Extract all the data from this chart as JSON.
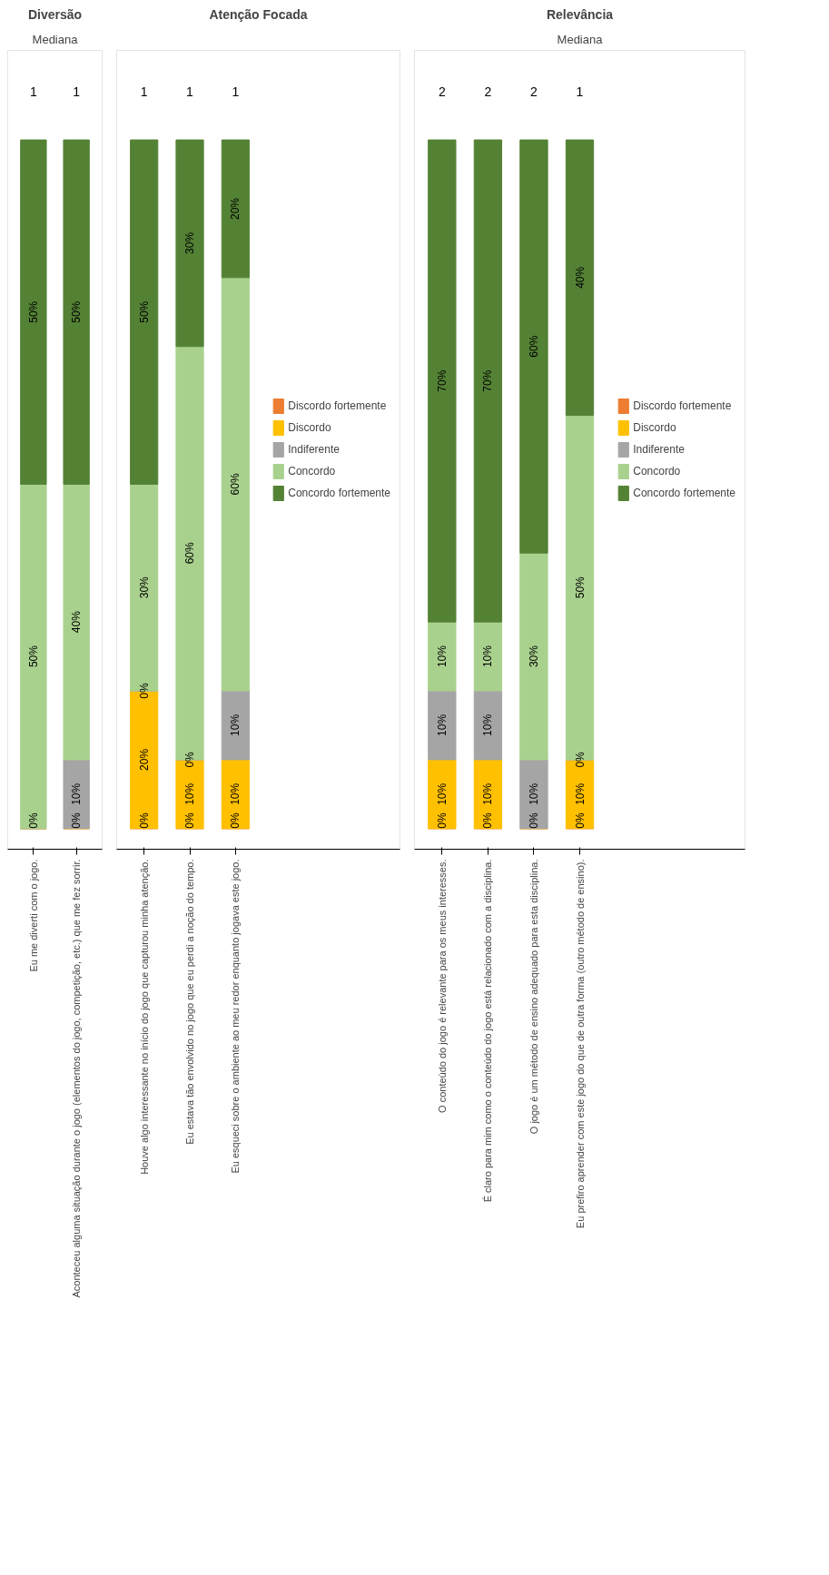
{
  "chart_data": [
    {
      "type": "bar",
      "title": "Diversão",
      "stacked": true,
      "grid": false,
      "categories": [
        "Eu me diverti com o jogo.",
        "Aconteceu alguma situação durante o jogo (elementos do jogo, competição, etc.) que me fez sorrir."
      ],
      "series": [
        {
          "color": "#ed7d31",
          "values": [
            0,
            0
          ],
          "value_labels": [
            "0%",
            "0%"
          ]
        },
        {
          "color": "#ffc000",
          "values": [
            null,
            null
          ],
          "value_labels": [
            null,
            null
          ]
        },
        {
          "color": "#a5a5a5",
          "values": [
            null,
            10
          ],
          "value_labels": [
            null,
            "10%"
          ]
        },
        {
          "color": "#a9d18e",
          "values": [
            50,
            40
          ],
          "value_labels": [
            "50%",
            "40%"
          ]
        },
        {
          "color": "#548235",
          "values": [
            50,
            50
          ],
          "value_labels": [
            "50%",
            "50%"
          ]
        }
      ],
      "annotations": [
        "Mediana",
        "1",
        "1"
      ]
    },
    {
      "type": "bar",
      "title": "Atenção Focada",
      "stacked": true,
      "grid": false,
      "legend": "right",
      "categories": [
        "Houve algo interessante no início do jogo que capturou minha atenção.",
        "Eu estava tão envolvido no jogo que eu perdi a noção do tempo.",
        "Eu esqueci sobre o ambiente ao meu redor enquanto jogava este jogo."
      ],
      "series": [
        {
          "name": "Discordo fortemente",
          "color": "#ed7d31",
          "values": [
            0,
            0,
            0
          ],
          "value_labels": [
            "0%",
            "0%",
            "0%"
          ]
        },
        {
          "name": "Discordo",
          "color": "#ffc000",
          "values": [
            20,
            10,
            10
          ],
          "value_labels": [
            "20%",
            "10%",
            "10%"
          ]
        },
        {
          "name": "Indiferente",
          "color": "#a5a5a5",
          "values": [
            0,
            0,
            10
          ],
          "value_labels": [
            "0%",
            "0%",
            "10%"
          ]
        },
        {
          "name": "Concordo",
          "color": "#a9d18e",
          "values": [
            30,
            60,
            60
          ],
          "value_labels": [
            "30%",
            "60%",
            "60%"
          ]
        },
        {
          "name": "Concordo fortemente",
          "color": "#548235",
          "values": [
            50,
            30,
            20
          ],
          "value_labels": [
            "50%",
            "30%",
            "20%"
          ]
        }
      ],
      "annotations": [
        "1",
        "1",
        "1"
      ]
    },
    {
      "type": "bar",
      "title": "Relevância",
      "stacked": true,
      "grid": false,
      "legend": "right",
      "categories": [
        "O conteúdo do jogo é relevante para os meus interesses.",
        "É claro para mim como o conteúdo do jogo está relacionado com a disciplina.",
        "O jogo é um método de ensino adequado para esta disciplina.",
        "Eu prefiro aprender com este jogo do que de outra forma (outro método de ensino)."
      ],
      "series": [
        {
          "name": "Discordo fortemente",
          "color": "#ed7d31",
          "values": [
            0,
            0,
            0,
            0
          ],
          "value_labels": [
            "0%",
            "0%",
            "0%",
            "0%"
          ]
        },
        {
          "name": "Discordo",
          "color": "#ffc000",
          "values": [
            10,
            10,
            null,
            10
          ],
          "value_labels": [
            "10%",
            "10%",
            null,
            "10%"
          ]
        },
        {
          "name": "Indiferente",
          "color": "#a5a5a5",
          "values": [
            10,
            10,
            10,
            0
          ],
          "value_labels": [
            "10%",
            "10%",
            "10%",
            "0%"
          ]
        },
        {
          "name": "Concordo",
          "color": "#a9d18e",
          "values": [
            10,
            10,
            30,
            50
          ],
          "value_labels": [
            "10%",
            "10%",
            "30%",
            "50%"
          ]
        },
        {
          "name": "Concordo fortemente",
          "color": "#548235",
          "values": [
            70,
            70,
            60,
            40
          ],
          "value_labels": [
            "70%",
            "70%",
            "60%",
            "40%"
          ]
        }
      ],
      "annotations": [
        "Mediana",
        "2",
        "2",
        "2",
        "1"
      ]
    }
  ]
}
